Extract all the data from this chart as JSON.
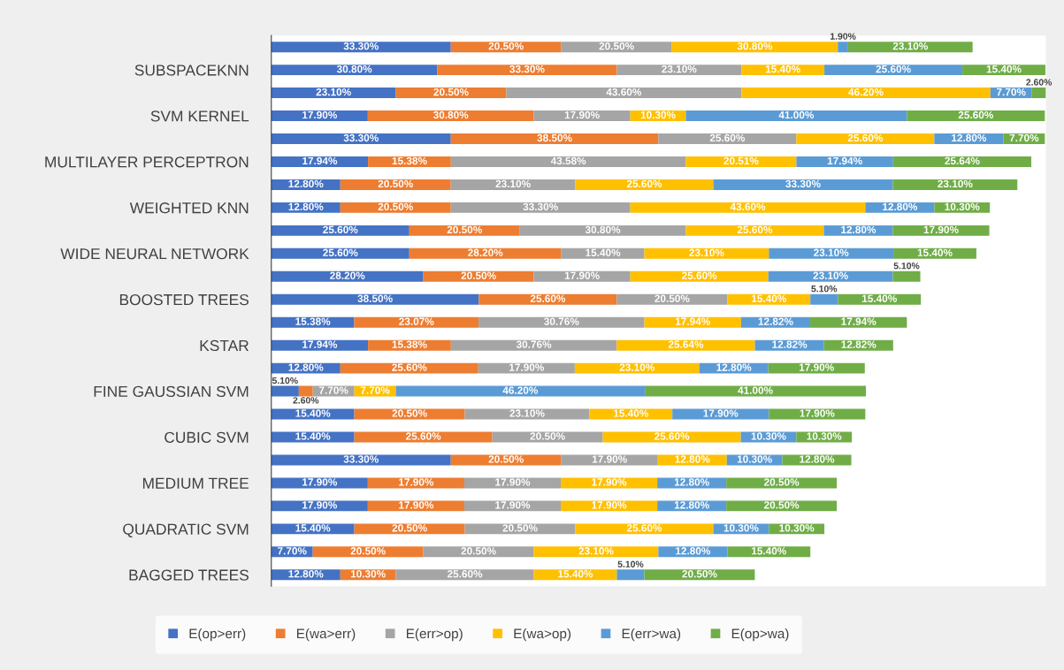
{
  "chart_data": {
    "type": "bar",
    "orientation": "horizontal",
    "stacked": true,
    "legend": "bottom",
    "tick_labels": "y",
    "categories": [
      null,
      "SUBSPACEKNN",
      null,
      "SVM KERNEL",
      null,
      "MULTILAYER PERCEPTRON",
      null,
      "WEIGHTED KNN",
      null,
      "WIDE NEURAL NETWORK",
      null,
      "BOOSTED TREES",
      null,
      "KSTAR",
      null,
      "FINE GAUSSIAN SVM",
      null,
      "CUBIC SVM",
      null,
      "MEDIUM TREE",
      null,
      "QUADRATIC SVM",
      null,
      "BAGGED TREES"
    ],
    "series": [
      {
        "name": "E(op>err)",
        "color": "#4472c4",
        "values": [
          33.3,
          30.8,
          23.1,
          17.9,
          33.3,
          17.94,
          12.8,
          12.8,
          25.6,
          25.6,
          28.2,
          38.5,
          15.38,
          17.94,
          12.8,
          5.1,
          15.4,
          15.4,
          33.3,
          17.9,
          17.9,
          15.4,
          7.7,
          12.8
        ],
        "value_labels": [
          "33.30%",
          "30.80%",
          "23.10%",
          "17.90%",
          "33.30%",
          "17.94%",
          "12.80%",
          "12.80%",
          "25.60%",
          "25.60%",
          "28.20%",
          "38.50%",
          "15.38%",
          "17.94%",
          "12.80%",
          "5.10%",
          "15.40%",
          "15.40%",
          "33.30%",
          "17.90%",
          "17.90%",
          "15.40%",
          "7.70%",
          "12.80%"
        ]
      },
      {
        "name": "E(wa>err)",
        "color": "#ed7d31",
        "values": [
          20.5,
          33.3,
          20.5,
          30.8,
          38.5,
          15.38,
          20.5,
          20.5,
          20.5,
          28.2,
          20.5,
          25.6,
          23.07,
          15.38,
          25.6,
          2.6,
          20.5,
          25.6,
          20.5,
          17.9,
          17.9,
          20.5,
          20.5,
          10.3
        ],
        "value_labels": [
          "20.50%",
          "33.30%",
          "20.50%",
          "30.80%",
          "38.50%",
          "15.38%",
          "20.50%",
          "20.50%",
          "20.50%",
          "28.20%",
          "20.50%",
          "25.60%",
          "23.07%",
          "15.38%",
          "25.60%",
          "2.60%",
          "20.50%",
          "25.60%",
          "20.50%",
          "17.90%",
          "17.90%",
          "20.50%",
          "20.50%",
          "10.30%"
        ]
      },
      {
        "name": "E(err>op)",
        "color": "#a5a5a5",
        "values": [
          20.5,
          23.1,
          43.6,
          17.9,
          25.6,
          43.58,
          23.1,
          33.3,
          30.8,
          15.4,
          17.9,
          20.5,
          30.76,
          30.76,
          17.9,
          7.7,
          23.1,
          20.5,
          17.9,
          17.9,
          17.9,
          20.5,
          20.5,
          25.6
        ],
        "value_labels": [
          "20.50%",
          "23.10%",
          "43.60%",
          "17.90%",
          "25.60%",
          "43.58%",
          "23.10%",
          "33.30%",
          "30.80%",
          "15.40%",
          "17.90%",
          "20.50%",
          "30.76%",
          "30.76%",
          "17.90%",
          "7.70%",
          "23.10%",
          "20.50%",
          "17.90%",
          "17.90%",
          "17.90%",
          "20.50%",
          "20.50%",
          "25.60%"
        ]
      },
      {
        "name": "E(wa>op)",
        "color": "#ffc000",
        "values": [
          30.8,
          15.4,
          46.2,
          10.3,
          25.6,
          20.51,
          25.6,
          43.6,
          25.6,
          23.1,
          25.6,
          15.4,
          17.94,
          25.64,
          23.1,
          7.7,
          15.4,
          25.6,
          12.8,
          17.9,
          17.9,
          25.6,
          23.1,
          15.4
        ],
        "value_labels": [
          "30.80%",
          "15.40%",
          "46.20%",
          "10.30%",
          "25.60%",
          "20.51%",
          "25.60%",
          "43.60%",
          "25.60%",
          "23.10%",
          "25.60%",
          "15.40%",
          "17.94%",
          "25.64%",
          "23.10%",
          "7.70%",
          "15.40%",
          "25.60%",
          "12.80%",
          "17.90%",
          "17.90%",
          "25.60%",
          "23.10%",
          "15.40%"
        ]
      },
      {
        "name": "E(err>wa)",
        "color": "#5b9bd5",
        "values": [
          1.9,
          25.6,
          7.7,
          41.0,
          12.8,
          17.94,
          33.3,
          12.8,
          12.8,
          23.1,
          23.1,
          5.1,
          12.82,
          12.82,
          12.8,
          46.2,
          17.9,
          10.3,
          10.3,
          12.8,
          12.8,
          10.3,
          12.8,
          5.1
        ],
        "value_labels": [
          "1.90%",
          "25.60%",
          "7.70%",
          "41.00%",
          "12.80%",
          "17.94%",
          "33.30%",
          "12.80%",
          "12.80%",
          "23.10%",
          "23.10%",
          "5.10%",
          "12.82%",
          "12.82%",
          "12.80%",
          "46.20%",
          "17.90%",
          "10.30%",
          "10.30%",
          "12.80%",
          "12.80%",
          "10.30%",
          "12.80%",
          "5.10%"
        ]
      },
      {
        "name": "E(op>wa)",
        "color": "#70ad47",
        "values": [
          23.1,
          15.4,
          2.6,
          25.6,
          7.7,
          25.64,
          23.1,
          10.3,
          17.9,
          15.4,
          5.1,
          15.4,
          17.94,
          12.82,
          17.9,
          41.0,
          17.9,
          10.3,
          12.8,
          20.5,
          20.5,
          10.3,
          15.4,
          20.5
        ],
        "value_labels": [
          "23.10%",
          "15.40%",
          "2.60%",
          "25.60%",
          "7.70%",
          "25.64%",
          "23.10%",
          "10.30%",
          "17.90%",
          "15.40%",
          "5.10%",
          "15.40%",
          "17.94%",
          "12.82%",
          "17.90%",
          "41.00%",
          "17.90%",
          "10.30%",
          "12.80%",
          "20.50%",
          "20.50%",
          "10.30%",
          "15.40%",
          "20.50%"
        ]
      }
    ]
  }
}
